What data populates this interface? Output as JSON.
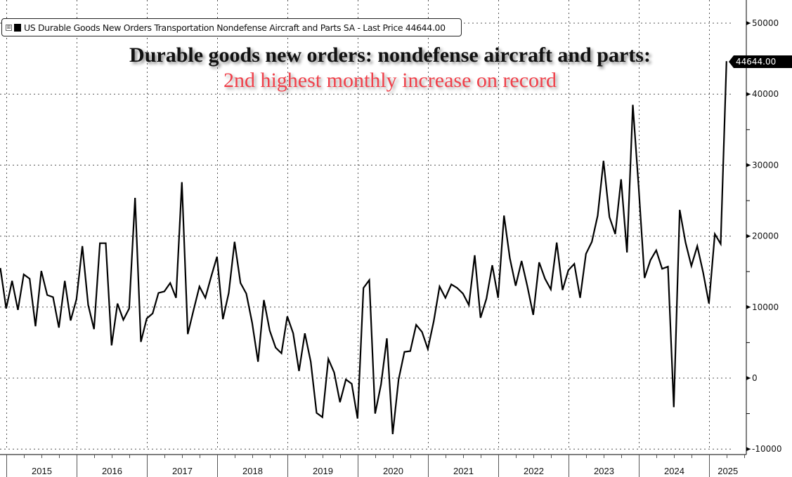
{
  "legend": {
    "label": "US Durable Goods New Orders Transportation Nondefense Aircraft and Parts SA - Last Price 44644.00",
    "expander": "⊞",
    "series_color": "#000000"
  },
  "headline": {
    "line1": "Durable goods new orders: nondefense aircraft and parts:",
    "line2": "2nd highest monthly increase on record",
    "line2_color": "#f0404a"
  },
  "last_price_label": "44644.00",
  "chart_data": {
    "type": "line",
    "title": "Durable goods new orders: nondefense aircraft and parts: 2nd highest monthly increase on record",
    "xlabel": "",
    "ylabel": "",
    "ylim": [
      -10000,
      50000
    ],
    "yticks": [
      -10000,
      0,
      10000,
      20000,
      30000,
      40000,
      50000
    ],
    "ytick_labels": [
      "-10000",
      "0",
      "10000",
      "20000",
      "30000",
      "40000",
      "50000"
    ],
    "xticks": [
      "2015",
      "2016",
      "2017",
      "2018",
      "2019",
      "2020",
      "2021",
      "2022",
      "2023",
      "2024",
      "2025"
    ],
    "x_start": "2014-12",
    "frequency": "monthly",
    "grid": true,
    "legend_position": "top-left",
    "last_value": 44644.0,
    "series": [
      {
        "name": "US Durable Goods New Orders Transportation Nondefense Aircraft and Parts SA",
        "color": "#000000",
        "values": [
          15500,
          9800,
          13700,
          9600,
          14600,
          14000,
          7300,
          15100,
          11700,
          11400,
          7100,
          13700,
          8100,
          11100,
          18600,
          10300,
          6900,
          19000,
          19000,
          4600,
          10500,
          8200,
          9800,
          25400,
          5100,
          8400,
          9100,
          12000,
          12200,
          13400,
          11300,
          27600,
          6200,
          9600,
          12900,
          11300,
          14300,
          17100,
          8300,
          12000,
          19200,
          13400,
          11900,
          7800,
          2300,
          11000,
          6700,
          4300,
          3500,
          8700,
          6300,
          1000,
          6300,
          2300,
          -4900,
          -5500,
          2700,
          800,
          -3400,
          -200,
          -800,
          -5700,
          12700,
          13800,
          -5000,
          -900,
          5600,
          -7900,
          -200,
          3700,
          3800,
          7500,
          6500,
          4100,
          8000,
          12900,
          11300,
          13200,
          12700,
          11900,
          10300,
          17300,
          8500,
          11200,
          15900,
          11300,
          22900,
          16900,
          13000,
          16500,
          12900,
          8900,
          16300,
          14000,
          12500,
          19100,
          12400,
          15200,
          16100,
          11300,
          17500,
          19200,
          22900,
          30600,
          22700,
          20300,
          28000,
          17700,
          38500,
          26900,
          14100,
          16600,
          18000,
          15400,
          15700,
          -4100,
          23700,
          19100,
          15800,
          18600,
          14900,
          10500,
          20300,
          18900,
          44644
        ]
      }
    ]
  }
}
